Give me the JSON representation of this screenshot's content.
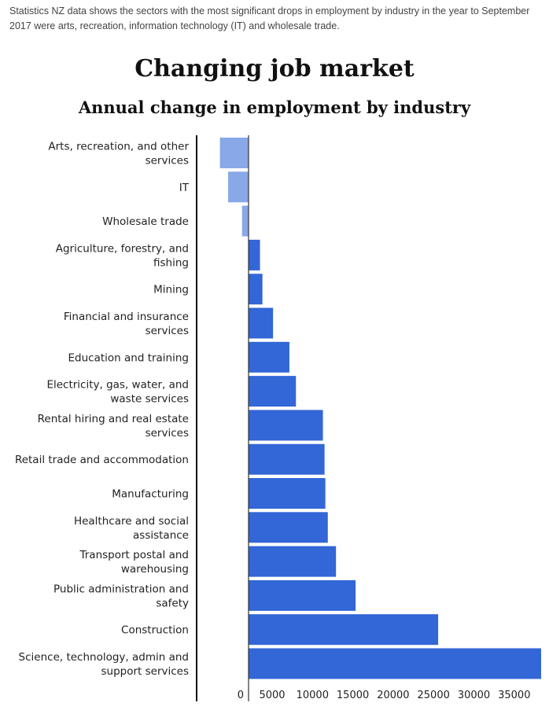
{
  "intro_text": "Statistics NZ data shows the sectors with the most significant drops in employment by industry in the year to September 2017 were arts, recreation, information technology (IT) and wholesale trade.",
  "chart_data": {
    "type": "bar",
    "orientation": "horizontal",
    "title": "Changing job market",
    "subtitle": "Annual change in employment by industry",
    "categories": [
      "Arts, recreation, and other services",
      "IT",
      "Wholesale trade",
      "Agriculture, forestry, and fishing",
      "Mining",
      "Financial and insurance services",
      "Education and training",
      "Electricity, gas, water, and waste services",
      "Rental hiring and real estate services",
      "Retail trade and accommodation",
      "Manufacturing",
      "Healthcare and social assistance",
      "Transport postal and warehousing",
      "Public administration and safety",
      "Construction",
      "Science, technology, admin and support services"
    ],
    "values": [
      -3500,
      -2500,
      -800,
      1400,
      1700,
      3000,
      5000,
      5800,
      9100,
      9300,
      9400,
      9700,
      10700,
      13100,
      23200,
      35800
    ],
    "xticks": [
      "0",
      "5000",
      "10000",
      "15000",
      "20000",
      "25000",
      "30000",
      "35000"
    ],
    "xlim": [
      -6300,
      35800
    ],
    "colors": {
      "positive": "#3366d6",
      "negative": "#88a8e8"
    },
    "grid": false
  }
}
